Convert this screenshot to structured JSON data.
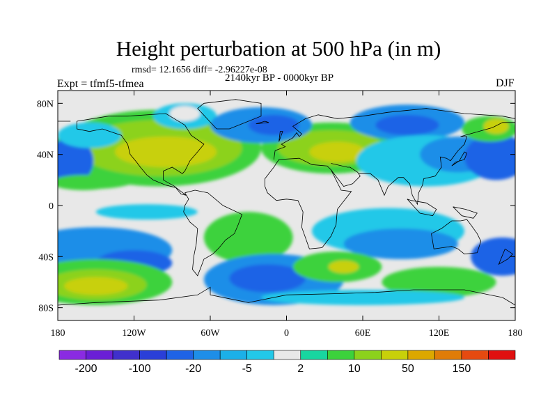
{
  "title": "Height perturbation at 500 hPa (in m)",
  "stats_line": "rmsd= 12.1656 diff= -2.96227e-08",
  "expt_label": "Expt = tfmf5-tfmea",
  "period_label": "2140kyr BP - 0000kyr BP",
  "season_label": "DJF",
  "y_ticks": [
    {
      "label": "80N",
      "lat": 80
    },
    {
      "label": "40N",
      "lat": 40
    },
    {
      "label": "0",
      "lat": 0
    },
    {
      "label": "40S",
      "lat": -40
    },
    {
      "label": "80S",
      "lat": -80
    }
  ],
  "x_ticks": [
    {
      "label": "180",
      "lon": -180
    },
    {
      "label": "120W",
      "lon": -120
    },
    {
      "label": "60W",
      "lon": -60
    },
    {
      "label": "0",
      "lon": 0
    },
    {
      "label": "60E",
      "lon": 60
    },
    {
      "label": "120E",
      "lon": 120
    },
    {
      "label": "180",
      "lon": 180
    }
  ],
  "colorbar": {
    "colors": [
      "#8a2be2",
      "#6a1fd6",
      "#4030cc",
      "#2a3fd8",
      "#1f63e6",
      "#1e8ee8",
      "#1bb0e8",
      "#22c8e8",
      "#e8e8e8",
      "#18d6a0",
      "#3cd23c",
      "#8cd21c",
      "#c8d00a",
      "#dca800",
      "#e07c08",
      "#e64a10",
      "#e01010"
    ],
    "labels": [
      {
        "text": "-200",
        "boundary": 1
      },
      {
        "text": "-100",
        "boundary": 3
      },
      {
        "text": "-20",
        "boundary": 5
      },
      {
        "text": "-5",
        "boundary": 7
      },
      {
        "text": "2",
        "boundary": 9
      },
      {
        "text": "10",
        "boundary": 11
      },
      {
        "text": "50",
        "boundary": 13
      },
      {
        "text": "150",
        "boundary": 15
      }
    ]
  },
  "field": {
    "background": "#e8e8e8",
    "blobs": [
      {
        "name": "n-pacific-green",
        "lon": -150,
        "lat": 35,
        "rx": 50,
        "ry": 22,
        "color": "#3cd23c"
      },
      {
        "name": "n-america-green",
        "lon": -100,
        "lat": 45,
        "rx": 80,
        "ry": 30,
        "color": "#3cd23c"
      },
      {
        "name": "n-america-yellowgreen",
        "lon": -100,
        "lat": 45,
        "rx": 65,
        "ry": 22,
        "color": "#8cd21c"
      },
      {
        "name": "n-america-yellow",
        "lon": -95,
        "lat": 42,
        "rx": 40,
        "ry": 12,
        "color": "#c8d00a"
      },
      {
        "name": "greenland-cyan",
        "lon": -80,
        "lat": 70,
        "rx": 25,
        "ry": 10,
        "color": "#22c8e8"
      },
      {
        "name": "greenland-white",
        "lon": -80,
        "lat": 72,
        "rx": 12,
        "ry": 6,
        "color": "#e8e8e8"
      },
      {
        "name": "europe-green",
        "lon": 35,
        "lat": 45,
        "rx": 55,
        "ry": 20,
        "color": "#3cd23c"
      },
      {
        "name": "europe-yellowgreen",
        "lon": 35,
        "lat": 45,
        "rx": 42,
        "ry": 14,
        "color": "#8cd21c"
      },
      {
        "name": "europe-yellow",
        "lon": 40,
        "lat": 42,
        "rx": 22,
        "ry": 8,
        "color": "#c8d00a"
      },
      {
        "name": "atlantic-blue",
        "lon": -20,
        "lat": 63,
        "rx": 40,
        "ry": 14,
        "color": "#1e8ee8"
      },
      {
        "name": "atlantic-darkblue",
        "lon": -10,
        "lat": 63,
        "rx": 20,
        "ry": 8,
        "color": "#1f63e6"
      },
      {
        "name": "siberia-blue",
        "lon": 95,
        "lat": 65,
        "rx": 45,
        "ry": 14,
        "color": "#1e8ee8"
      },
      {
        "name": "siberia-darkblue",
        "lon": 95,
        "lat": 63,
        "rx": 25,
        "ry": 8,
        "color": "#1f63e6"
      },
      {
        "name": "asia-cyan",
        "lon": 110,
        "lat": 35,
        "rx": 55,
        "ry": 20,
        "color": "#22c8e8"
      },
      {
        "name": "asia-blue",
        "lon": 135,
        "lat": 40,
        "rx": 30,
        "ry": 14,
        "color": "#1e8ee8"
      },
      {
        "name": "w-pacific-blue",
        "lon": 165,
        "lat": 38,
        "rx": 25,
        "ry": 18,
        "color": "#1f63e6"
      },
      {
        "name": "kamchatka-green",
        "lon": 160,
        "lat": 60,
        "rx": 22,
        "ry": 10,
        "color": "#3cd23c"
      },
      {
        "name": "kamchatka-yellow",
        "lon": 165,
        "lat": 62,
        "rx": 10,
        "ry": 6,
        "color": "#c8d00a"
      },
      {
        "name": "e-pacific-blue",
        "lon": -170,
        "lat": 35,
        "rx": 18,
        "ry": 18,
        "color": "#1f63e6"
      },
      {
        "name": "e-pacific-cyan",
        "lon": -155,
        "lat": 55,
        "rx": 25,
        "ry": 10,
        "color": "#22c8e8"
      },
      {
        "name": "tropic-green",
        "lon": -160,
        "lat": 18,
        "rx": 25,
        "ry": 6,
        "color": "#3cd23c"
      },
      {
        "name": "tropic-cyan",
        "lon": -110,
        "lat": -5,
        "rx": 40,
        "ry": 6,
        "color": "#22c8e8"
      },
      {
        "name": "south-atlantic-green",
        "lon": -30,
        "lat": -25,
        "rx": 35,
        "ry": 20,
        "color": "#3cd23c"
      },
      {
        "name": "indian-cyan",
        "lon": 80,
        "lat": -20,
        "rx": 60,
        "ry": 18,
        "color": "#22c8e8"
      },
      {
        "name": "indian-blue",
        "lon": 90,
        "lat": -30,
        "rx": 45,
        "ry": 12,
        "color": "#1e8ee8"
      },
      {
        "name": "s-pacific-blue",
        "lon": -150,
        "lat": -35,
        "rx": 60,
        "ry": 18,
        "color": "#1e8ee8"
      },
      {
        "name": "s-pacific-darkblue",
        "lon": -120,
        "lat": -45,
        "rx": 30,
        "ry": 10,
        "color": "#1f63e6"
      },
      {
        "name": "s-pacific-green",
        "lon": -150,
        "lat": -60,
        "rx": 60,
        "ry": 18,
        "color": "#3cd23c"
      },
      {
        "name": "s-pacific-yellowgreen",
        "lon": -150,
        "lat": -62,
        "rx": 40,
        "ry": 12,
        "color": "#8cd21c"
      },
      {
        "name": "s-pacific-yellow",
        "lon": -150,
        "lat": -63,
        "rx": 25,
        "ry": 7,
        "color": "#c8d00a"
      },
      {
        "name": "s-atlantic-blue",
        "lon": -10,
        "lat": -58,
        "rx": 55,
        "ry": 20,
        "color": "#1e8ee8"
      },
      {
        "name": "s-atlantic-darkblue",
        "lon": -15,
        "lat": -57,
        "rx": 30,
        "ry": 11,
        "color": "#1f63e6"
      },
      {
        "name": "s-indian-green",
        "lon": 40,
        "lat": -48,
        "rx": 35,
        "ry": 12,
        "color": "#3cd23c"
      },
      {
        "name": "s-indian-yellow",
        "lon": 45,
        "lat": -48,
        "rx": 12,
        "ry": 5,
        "color": "#c8d00a"
      },
      {
        "name": "tasman-blue",
        "lon": 170,
        "lat": -40,
        "rx": 25,
        "ry": 15,
        "color": "#1f63e6"
      },
      {
        "name": "s-ocean-green",
        "lon": 120,
        "lat": -60,
        "rx": 45,
        "ry": 12,
        "color": "#3cd23c"
      },
      {
        "name": "antarctic-cyan",
        "lon": 60,
        "lat": -72,
        "rx": 80,
        "ry": 6,
        "color": "#22c8e8"
      }
    ]
  }
}
